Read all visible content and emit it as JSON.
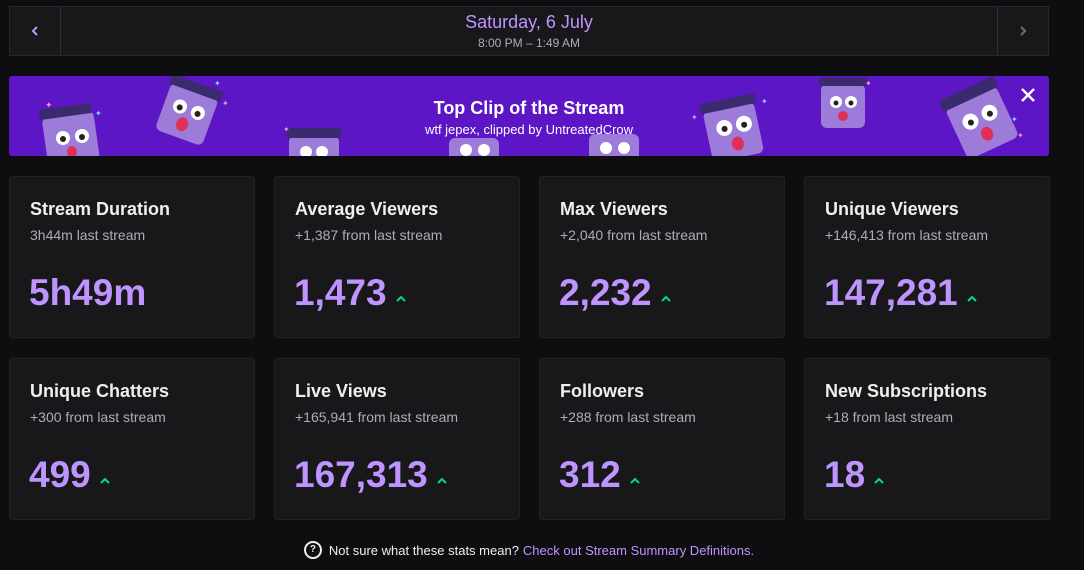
{
  "header": {
    "date": "Saturday, 6 July",
    "time_range": "8:00 PM – 1:49 AM",
    "prev_icon": "chevron-left-icon",
    "next_icon": "chevron-right-icon"
  },
  "banner": {
    "title": "Top Clip of the Stream",
    "subtitle": "wtf jepex, clipped by UntreatedCrow",
    "close_icon": "close-icon",
    "background": "#5c16c5"
  },
  "stats": [
    {
      "title": "Stream Duration",
      "sub": "3h44m last stream",
      "value": "5h49m",
      "trend": "none"
    },
    {
      "title": "Average Viewers",
      "sub": "+1,387 from last stream",
      "value": "1,473",
      "trend": "up"
    },
    {
      "title": "Max Viewers",
      "sub": "+2,040 from last stream",
      "value": "2,232",
      "trend": "up"
    },
    {
      "title": "Unique Viewers",
      "sub": "+146,413 from last stream",
      "value": "147,281",
      "trend": "up"
    },
    {
      "title": "Unique Chatters",
      "sub": "+300 from last stream",
      "value": "499",
      "trend": "up"
    },
    {
      "title": "Live Views",
      "sub": "+165,941 from last stream",
      "value": "167,313",
      "trend": "up"
    },
    {
      "title": "Followers",
      "sub": "+288 from last stream",
      "value": "312",
      "trend": "up"
    },
    {
      "title": "New Subscriptions",
      "sub": "+18 from last stream",
      "value": "18",
      "trend": "up"
    }
  ],
  "footer": {
    "text": "Not sure what these stats mean?",
    "link": "Check out Stream Summary Definitions."
  },
  "colors": {
    "accent": "#bf94ff",
    "trend_up": "#00db84",
    "card_bg": "#18181b",
    "page_bg": "#0e0e10"
  }
}
